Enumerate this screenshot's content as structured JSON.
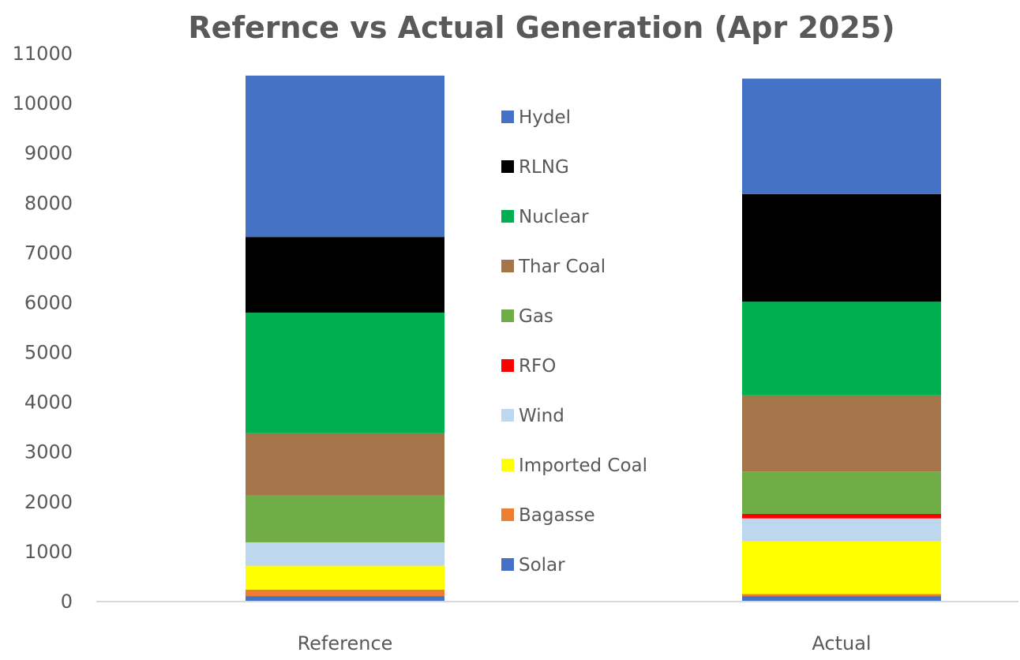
{
  "chart_data": {
    "type": "bar",
    "stacked": true,
    "title": "Refernce vs Actual Generation (Apr 2025)",
    "xlabel": "",
    "ylabel": "",
    "categories": [
      "Reference",
      "Actual"
    ],
    "ylim": [
      0,
      11000
    ],
    "yticks": [
      0,
      1000,
      2000,
      3000,
      4000,
      5000,
      6000,
      7000,
      8000,
      9000,
      10000,
      11000
    ],
    "grid": false,
    "legend_position": "center",
    "series": [
      {
        "name": "Solar",
        "color": "#4472C4",
        "values": [
          110,
          110
        ]
      },
      {
        "name": "Bagasse",
        "color": "#ED7D31",
        "values": [
          130,
          40
        ]
      },
      {
        "name": "Imported Coal",
        "color": "#FFFF00",
        "values": [
          480,
          1060
        ]
      },
      {
        "name": "Wind",
        "color": "#BDD7EE",
        "values": [
          470,
          460
        ]
      },
      {
        "name": "RFO",
        "color": "#FF0000",
        "values": [
          0,
          90
        ]
      },
      {
        "name": "Gas",
        "color": "#70AD47",
        "values": [
          950,
          850
        ]
      },
      {
        "name": "Thar Coal",
        "color": "#A5754A",
        "values": [
          1240,
          1530
        ]
      },
      {
        "name": "Nuclear",
        "color": "#00B050",
        "values": [
          2420,
          1880
        ]
      },
      {
        "name": "RLNG",
        "color": "#000000",
        "values": [
          1520,
          2160
        ]
      },
      {
        "name": "Hydel",
        "color": "#4472C4",
        "values": [
          3240,
          2320
        ]
      }
    ]
  }
}
